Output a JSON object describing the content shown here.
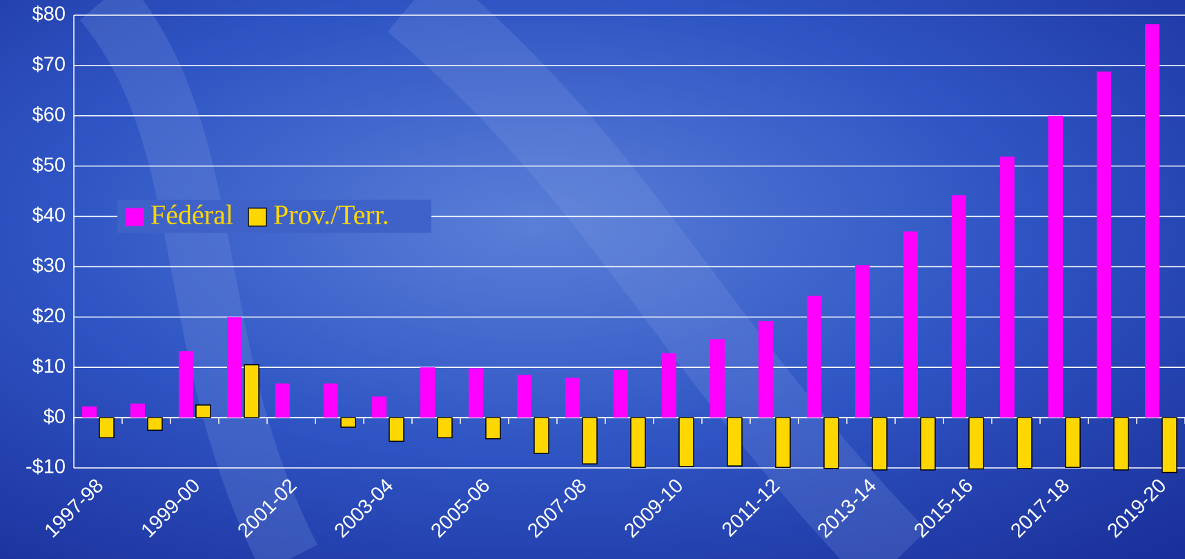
{
  "chart_data": {
    "type": "bar",
    "categories": [
      "1997-98",
      null,
      "1999-00",
      null,
      "2001-02",
      null,
      "2003-04",
      null,
      "2005-06",
      null,
      "2007-08",
      null,
      "2009-10",
      null,
      "2011-12",
      null,
      "2013-14",
      null,
      "2015-16",
      null,
      "2017-18",
      null,
      "2019-20"
    ],
    "series": [
      {
        "name": "Fédéral",
        "color": "#ff00ff",
        "values": [
          2.2,
          2.8,
          13.2,
          20,
          6.8,
          6.8,
          4.2,
          10,
          9.8,
          8.5,
          7.9,
          9.5,
          12.8,
          15.6,
          19.2,
          24.2,
          30.3,
          37,
          44.2,
          51.9,
          60,
          68.8,
          78.2
        ]
      },
      {
        "name": "Prov./Terr.",
        "color": "#ffd700",
        "values": [
          -4,
          -2.5,
          2.5,
          10.5,
          0,
          -1.9,
          -4.7,
          -4,
          -4.2,
          -7.1,
          -9.2,
          -9.9,
          -9.7,
          -9.6,
          -9.9,
          -10.1,
          -10.4,
          -10.4,
          -10.2,
          -10.1,
          -9.9,
          -10.4,
          -10.9
        ]
      }
    ],
    "ylim": [
      -10,
      80
    ],
    "yticks": [
      {
        "value": -10,
        "label": "-$10"
      },
      {
        "value": 0,
        "label": "$0"
      },
      {
        "value": 10,
        "label": "$10"
      },
      {
        "value": 20,
        "label": "$20"
      },
      {
        "value": 30,
        "label": "$30"
      },
      {
        "value": 40,
        "label": "$40"
      },
      {
        "value": 50,
        "label": "$50"
      },
      {
        "value": 60,
        "label": "$60"
      },
      {
        "value": 70,
        "label": "$70"
      },
      {
        "value": 80,
        "label": "$80"
      }
    ],
    "grid": true
  }
}
